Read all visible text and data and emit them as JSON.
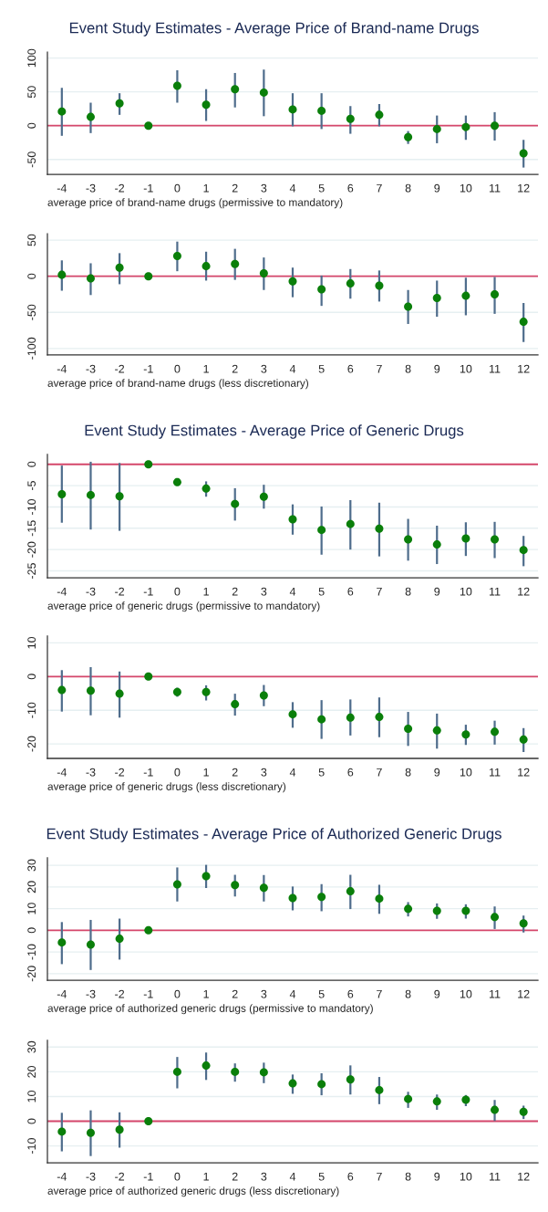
{
  "chart_data": [
    {
      "type": "scatter",
      "title": "Event Study Estimates - Average Price of Brand-name Drugs",
      "xlabel": "average price of brand-name drugs (permissive to mandatory)",
      "x": [
        -4,
        -3,
        -2,
        -1,
        0,
        1,
        2,
        3,
        4,
        5,
        6,
        7,
        8,
        9,
        10,
        11,
        12
      ],
      "xlim": [
        -4.5,
        12.5
      ],
      "xticks": [
        -4,
        -3,
        -2,
        -1,
        0,
        1,
        2,
        3,
        4,
        5,
        6,
        7,
        8,
        9,
        10,
        11,
        12
      ],
      "ylim": [
        -72,
        109
      ],
      "yticks": [
        -50,
        0,
        50,
        100
      ],
      "grid": "y",
      "marker": "circle",
      "ref_lines": [
        {
          "axis": "y",
          "value": 0,
          "color": "#d6476b"
        }
      ],
      "series": [
        {
          "color": "#0a7f0a",
          "values": [
            21,
            13,
            33,
            0,
            59,
            31,
            54,
            49,
            24,
            22,
            10,
            16,
            -17,
            -5,
            -2,
            0,
            -41
          ],
          "errors": [
            [
              -15,
              56
            ],
            [
              -11,
              34
            ],
            [
              16,
              48
            ],
            null,
            [
              34,
              82
            ],
            [
              7,
              54
            ],
            [
              27,
              78
            ],
            [
              14,
              83
            ],
            [
              -1,
              48
            ],
            [
              -5,
              48
            ],
            [
              -12,
              29
            ],
            [
              -1,
              32
            ],
            [
              -27,
              -8
            ],
            [
              -26,
              15
            ],
            [
              -21,
              15
            ],
            [
              -22,
              20
            ],
            [
              -62,
              -21
            ]
          ]
        }
      ]
    },
    {
      "type": "scatter",
      "xlabel": "average price of brand-name drugs (less discretionary)",
      "x": [
        -4,
        -3,
        -2,
        -1,
        0,
        1,
        2,
        3,
        4,
        5,
        6,
        7,
        8,
        9,
        10,
        11,
        12
      ],
      "xlim": [
        -4.5,
        12.5
      ],
      "xticks": [
        -4,
        -3,
        -2,
        -1,
        0,
        1,
        2,
        3,
        4,
        5,
        6,
        7,
        8,
        9,
        10,
        11,
        12
      ],
      "ylim": [
        -109,
        59
      ],
      "yticks": [
        -100,
        -50,
        0,
        50
      ],
      "grid": "y",
      "marker": "circle",
      "ref_lines": [
        {
          "axis": "y",
          "value": 0,
          "color": "#d6476b"
        }
      ],
      "series": [
        {
          "color": "#0a7f0a",
          "values": [
            2,
            -3,
            12,
            0,
            28,
            14,
            17,
            4,
            -7,
            -18,
            -10,
            -13,
            -42,
            -30,
            -27,
            -25,
            -63
          ],
          "errors": [
            [
              -20,
              22
            ],
            [
              -26,
              18
            ],
            [
              -11,
              32
            ],
            null,
            [
              7,
              48
            ],
            [
              -6,
              34
            ],
            [
              -5,
              38
            ],
            [
              -19,
              26
            ],
            [
              -29,
              12
            ],
            [
              -41,
              1
            ],
            [
              -31,
              10
            ],
            [
              -35,
              8
            ],
            [
              -66,
              -19
            ],
            [
              -56,
              -6
            ],
            [
              -54,
              -2
            ],
            [
              -52,
              -1
            ],
            [
              -91,
              -37
            ]
          ]
        }
      ]
    },
    {
      "type": "scatter",
      "title": "Event Study Estimates - Average Price of Generic Drugs",
      "xlabel": "average price of generic drugs (permissive to mandatory)",
      "x": [
        -4,
        -3,
        -2,
        -1,
        0,
        1,
        2,
        3,
        4,
        5,
        6,
        7,
        8,
        9,
        10,
        11,
        12
      ],
      "xlim": [
        -4.5,
        12.5
      ],
      "xticks": [
        -4,
        -3,
        -2,
        -1,
        0,
        1,
        2,
        3,
        4,
        5,
        6,
        7,
        8,
        9,
        10,
        11,
        12
      ],
      "ylim": [
        -26.6,
        2.3
      ],
      "yticks": [
        -25,
        -20,
        -15,
        -10,
        -5,
        0
      ],
      "grid": "y",
      "marker": "circle",
      "ref_lines": [
        {
          "axis": "y",
          "value": 0,
          "color": "#d6476b"
        }
      ],
      "series": [
        {
          "color": "#0a7f0a",
          "values": [
            -7,
            -7.2,
            -7.5,
            0,
            -4.2,
            -5.7,
            -9.3,
            -7.6,
            -12.9,
            -15.4,
            -14,
            -15.1,
            -17.6,
            -18.8,
            -17.4,
            -17.6,
            -20.1
          ],
          "errors": [
            [
              -13.7,
              -0.3
            ],
            [
              -15.3,
              0.6
            ],
            [
              -15.6,
              0.3
            ],
            null,
            [
              -5,
              -3.6
            ],
            [
              -7.6,
              -4
            ],
            [
              -13.2,
              -5.6
            ],
            [
              -10.4,
              -4.8
            ],
            [
              -16.5,
              -9.4
            ],
            [
              -21.2,
              -9.9
            ],
            [
              -20,
              -8.4
            ],
            [
              -21.6,
              -9
            ],
            [
              -22.6,
              -12.8
            ],
            [
              -23.4,
              -14.4
            ],
            [
              -21.5,
              -13.6
            ],
            [
              -22,
              -13.5
            ],
            [
              -23.9,
              -16.8
            ]
          ]
        }
      ]
    },
    {
      "type": "scatter",
      "xlabel": "average price of generic drugs (less discretionary)",
      "x": [
        -4,
        -3,
        -2,
        -1,
        0,
        1,
        2,
        3,
        4,
        5,
        6,
        7,
        8,
        9,
        10,
        11,
        12
      ],
      "xlim": [
        -4.5,
        12.5
      ],
      "xticks": [
        -4,
        -3,
        -2,
        -1,
        0,
        1,
        2,
        3,
        4,
        5,
        6,
        7,
        8,
        9,
        10,
        11,
        12
      ],
      "ylim": [
        -24.3,
        12
      ],
      "yticks": [
        -20,
        -10,
        0,
        10
      ],
      "grid": "y",
      "marker": "circle",
      "ref_lines": [
        {
          "axis": "y",
          "value": 0,
          "color": "#d6476b"
        }
      ],
      "series": [
        {
          "color": "#0a7f0a",
          "values": [
            -4,
            -4.2,
            -5.1,
            0,
            -4.6,
            -4.6,
            -8.2,
            -5.6,
            -11.2,
            -12.7,
            -12.2,
            -12,
            -15.5,
            -16,
            -17.2,
            -16.4,
            -18.7
          ],
          "errors": [
            [
              -10.4,
              1.9
            ],
            [
              -11.5,
              2.8
            ],
            [
              -12.2,
              1.5
            ],
            null,
            [
              -6,
              -3.3
            ],
            [
              -7.1,
              -2.6
            ],
            [
              -11.6,
              -5.1
            ],
            [
              -8.8,
              -2.5
            ],
            [
              -15.2,
              -7.6
            ],
            [
              -18.5,
              -7
            ],
            [
              -17.5,
              -6.8
            ],
            [
              -18,
              -6.2
            ],
            [
              -20.6,
              -10.5
            ],
            [
              -21.4,
              -11
            ],
            [
              -20.3,
              -14.3
            ],
            [
              -20.2,
              -13.1
            ],
            [
              -22.4,
              -15.3
            ]
          ]
        }
      ]
    },
    {
      "type": "scatter",
      "title": "Event Study Estimates - Average Price of Authorized Generic Drugs",
      "xlabel": "average price of authorized generic drugs (permissive to mandatory)",
      "x": [
        -4,
        -3,
        -2,
        -1,
        0,
        1,
        2,
        3,
        4,
        5,
        6,
        7,
        8,
        9,
        10,
        11,
        12
      ],
      "xlim": [
        -4.5,
        12.5
      ],
      "xticks": [
        -4,
        -3,
        -2,
        -1,
        0,
        1,
        2,
        3,
        4,
        5,
        6,
        7,
        8,
        9,
        10,
        11,
        12
      ],
      "ylim": [
        -23,
        33.4
      ],
      "yticks": [
        -20,
        -10,
        0,
        10,
        20,
        30
      ],
      "grid": "y",
      "marker": "circle",
      "ref_lines": [
        {
          "axis": "y",
          "value": 0,
          "color": "#d6476b"
        }
      ],
      "series": [
        {
          "color": "#0a7f0a",
          "values": [
            -5.6,
            -6.6,
            -3.9,
            0,
            21.2,
            25,
            20.9,
            19.6,
            14.9,
            15.4,
            18,
            14.6,
            9.9,
            9,
            9,
            6.1,
            3.2
          ],
          "errors": [
            [
              -15.6,
              3.8
            ],
            [
              -18.3,
              4.8
            ],
            [
              -13.5,
              5.4
            ],
            null,
            [
              13.3,
              29
            ],
            [
              19.5,
              30.2
            ],
            [
              15.6,
              25.6
            ],
            [
              13.3,
              25.5
            ],
            [
              9.2,
              20.2
            ],
            [
              8.8,
              21.3
            ],
            [
              9.8,
              25.6
            ],
            [
              7.6,
              21
            ],
            [
              6.4,
              13
            ],
            [
              5.3,
              12.4
            ],
            [
              5.4,
              12
            ],
            [
              0.6,
              11
            ],
            [
              -1,
              6.8
            ]
          ]
        }
      ]
    },
    {
      "type": "scatter",
      "xlabel": "average price of authorized generic drugs (less discretionary)",
      "x": [
        -4,
        -3,
        -2,
        -1,
        0,
        1,
        2,
        3,
        4,
        5,
        6,
        7,
        8,
        9,
        10,
        11,
        12
      ],
      "xlim": [
        -4.5,
        12.5
      ],
      "xticks": [
        -4,
        -3,
        -2,
        -1,
        0,
        1,
        2,
        3,
        4,
        5,
        6,
        7,
        8,
        9,
        10,
        11,
        12
      ],
      "ylim": [
        -16.8,
        32.7
      ],
      "yticks": [
        -10,
        0,
        10,
        20,
        30
      ],
      "grid": "y",
      "marker": "circle",
      "ref_lines": [
        {
          "axis": "y",
          "value": 0,
          "color": "#d6476b"
        }
      ],
      "series": [
        {
          "color": "#0a7f0a",
          "values": [
            -4.2,
            -4.7,
            -3.4,
            0,
            20,
            22.5,
            20,
            19.8,
            15.3,
            15,
            16.9,
            12.6,
            9,
            8,
            8.7,
            4.6,
            3.8
          ],
          "errors": [
            [
              -12.2,
              3.4
            ],
            [
              -14.1,
              4.4
            ],
            [
              -10.7,
              3.6
            ],
            null,
            [
              13.3,
              26
            ],
            [
              16.7,
              27.8
            ],
            [
              16,
              23.4
            ],
            [
              15.4,
              23.7
            ],
            [
              11.1,
              18.9
            ],
            [
              10.5,
              19.4
            ],
            [
              10.8,
              22.6
            ],
            [
              6.9,
              17.9
            ],
            [
              5.4,
              11.9
            ],
            [
              4.6,
              10.8
            ],
            [
              6.1,
              10.6
            ],
            [
              0.1,
              8.6
            ],
            [
              0.9,
              6.3
            ]
          ]
        }
      ]
    }
  ]
}
